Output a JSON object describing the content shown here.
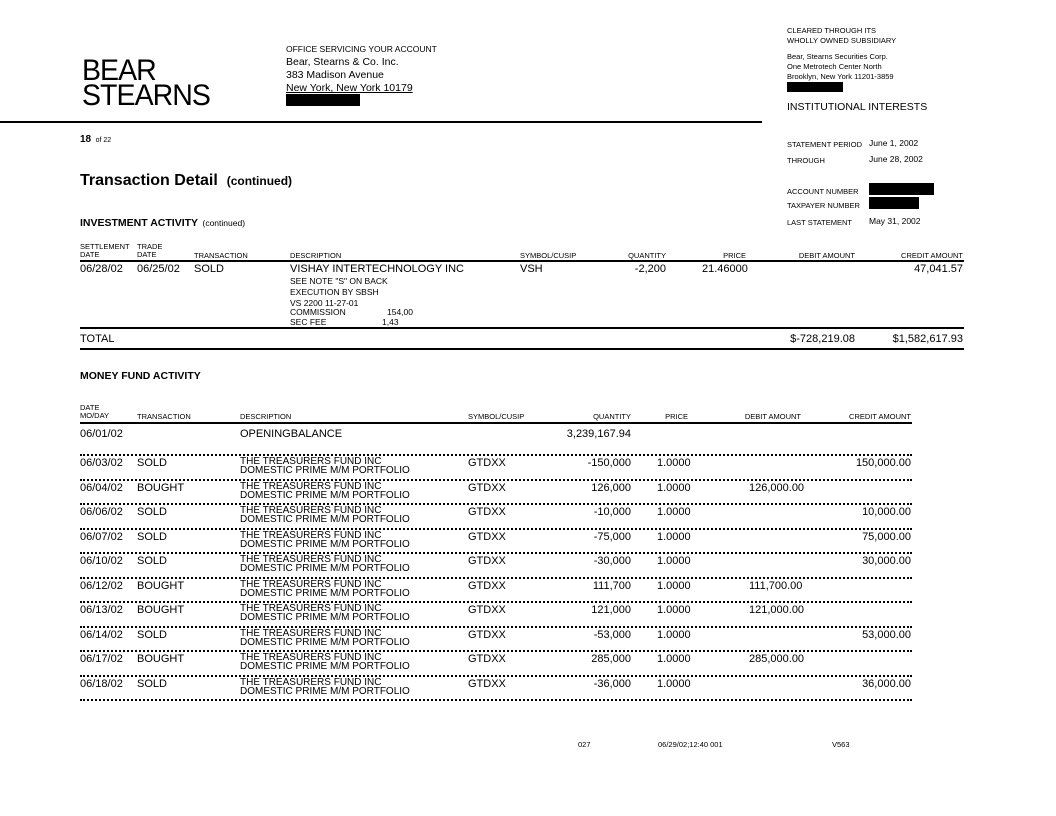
{
  "brand": {
    "logo_line1": "BEAR",
    "logo_line2": "STEARNS"
  },
  "office": {
    "heading": "OFFICE SERVICING YOUR ACCOUNT",
    "line1": "Bear, Stearns & Co. Inc.",
    "line2": "383 Madison Avenue",
    "line3": "New York, New York  10179"
  },
  "clearing": {
    "line1": "CLEARED THROUGH ITS",
    "line2": "WHOLLY OWNED SUBSIDIARY",
    "addr1": "Bear, Stearns Securities Corp.",
    "addr2": "One Metrotech Center North",
    "addr3": "Brooklyn,  New York  11201-3859",
    "division": "INSTITUTIONAL  INTERESTS"
  },
  "page": {
    "number": "18",
    "of": "of 22"
  },
  "statement": {
    "period_label": "STATEMENT  PERIOD",
    "period_start": "June 1, 2002",
    "through_label": "THROUGH",
    "period_end": "June 28, 2002",
    "account_label": "ACCOUNT  NUMBER",
    "taxpayer_label": "TAXPAYER  NUMBER",
    "last_label": "LAST  STATEMENT",
    "last_value": "May 31, 2002"
  },
  "title": {
    "main": "Transaction Detail",
    "sub": "(continued)"
  },
  "investment": {
    "heading": "INVESTMENT ACTIVITY",
    "heading_sub": "(continued)",
    "headers": {
      "settle1": "SETTLEMENT",
      "settle2": "DATE",
      "trade1": "TRADE",
      "trade2": "DATE",
      "transaction": "TRANSACTION",
      "description": "DESCRIPTION",
      "symbol": "SYMBOL/CUSIP",
      "quantity": "QUANTITY",
      "price": "PRICE",
      "debit": "DEBIT AMOUNT",
      "credit": "CREDIT AMOUNT"
    },
    "row": {
      "settlement": "06/28/02",
      "trade": "06/25/02",
      "transaction": "SOLD",
      "description": [
        "VISHAY INTERTECHNOLOGY  INC",
        "SEE NOTE \"S\" ON BACK",
        "EXECUTION BY SBSH",
        "VS 2200 11-27-01"
      ],
      "commission_label": "COMMISSION",
      "commission": "154,00",
      "secfee_label": "SEC FEE",
      "secfee": "1,43",
      "symbol": "VSH",
      "quantity": "-2,200",
      "price": "21.46000",
      "debit": "",
      "credit": "47,041.57"
    },
    "total": {
      "label": "TOTAL",
      "debit": "$-728,219.08",
      "credit": "$1,582,617.93"
    }
  },
  "money_fund": {
    "heading": "MONEY FUND ACTIVITY",
    "headers": {
      "date1": "DATE",
      "date2": "MO/DAY",
      "transaction": "TRANSACTION",
      "description": "DESCRIPTION",
      "symbol": "SYMBOL/CUSIP",
      "quantity": "QUANTITY",
      "price": "PRICE",
      "debit": "DEBIT AMOUNT",
      "credit": "CREDIT AMOUNT"
    },
    "opening": {
      "date": "06/01/02",
      "description": "OPENINGBALANCE",
      "quantity": "3,239,167.94"
    },
    "rows": [
      {
        "date": "06/03/02",
        "transaction": "SOLD",
        "desc1": "THE TREASURERS  FUND INC",
        "desc2": "DOMESTIC  PRIME  M/M PORTFOLIO",
        "symbol": "GTDXX",
        "quantity": "-150,000",
        "price": "1.0000",
        "debit": "",
        "credit": "150,000.00"
      },
      {
        "date": "06/04/02",
        "transaction": "BOUGHT",
        "desc1": "THE TREASURERS  FUND INC",
        "desc2": "DOMESTIC  PRIME  M/M PORTFOLIO",
        "symbol": "GTDXX",
        "quantity": "126,000",
        "price": "1.0000",
        "debit": "126,000.00",
        "credit": ""
      },
      {
        "date": "06/06/02",
        "transaction": "SOLD",
        "desc1": "THE TREASURERS  FUND INC",
        "desc2": "DOMESTIC  PRIME  M/M PORTFOLIO",
        "symbol": "GTDXX",
        "quantity": "-10,000",
        "price": "1.0000",
        "debit": "",
        "credit": "10,000.00"
      },
      {
        "date": "06/07/02",
        "transaction": "SOLD",
        "desc1": "THE TREASURERS  FUND INC",
        "desc2": "DOMESTIC  PRIME  M/M PORTFOLIO",
        "symbol": "GTDXX",
        "quantity": "-75,000",
        "price": "1.0000",
        "debit": "",
        "credit": "75,000.00"
      },
      {
        "date": "06/10/02",
        "transaction": "SOLD",
        "desc1": "THE TREASURERS  FUND INC",
        "desc2": "DOMESTIC  PRIME  M/M PORTFOLIO",
        "symbol": "GTDXX",
        "quantity": "-30,000",
        "price": "1.0000",
        "debit": "",
        "credit": "30,000.00"
      },
      {
        "date": "06/12/02",
        "transaction": "BOUGHT",
        "desc1": "THE TREASURERS  FUND INC",
        "desc2": "DOMESTIC  PRIME  M/M PORTFOLIO",
        "symbol": "GTDXX",
        "quantity": "111,700",
        "price": "1.0000",
        "debit": "111,700.00",
        "credit": ""
      },
      {
        "date": "06/13/02",
        "transaction": "BOUGHT",
        "desc1": "THE TREASURERS  FUND INC",
        "desc2": "DOMESTIC  PRIME  M/M PORTFOLIO",
        "symbol": "GTDXX",
        "quantity": "121,000",
        "price": "1.0000",
        "debit": "121,000.00",
        "credit": ""
      },
      {
        "date": "06/14/02",
        "transaction": "SOLD",
        "desc1": "THE TREASURERS  FUND INC",
        "desc2": "DOMESTIC  PRIME  M/M PORTFOLIO",
        "symbol": "GTDXX",
        "quantity": "-53,000",
        "price": "1.0000",
        "debit": "",
        "credit": "53,000.00"
      },
      {
        "date": "06/17/02",
        "transaction": "BOUGHT",
        "desc1": "THE TREASURERS  FUND INC",
        "desc2": "DOMESTIC  PRIME  M/M PORTFOLIO",
        "symbol": "GTDXX",
        "quantity": "285,000",
        "price": "1.0000",
        "debit": "285,000.00",
        "credit": ""
      },
      {
        "date": "06/18/02",
        "transaction": "SOLD",
        "desc1": "THE TREASURERS  FUND INC",
        "desc2": "DOMESTIC  PRIME  M/M PORTFOLIO",
        "symbol": "GTDXX",
        "quantity": "-36,000",
        "price": "1.0000",
        "debit": "",
        "credit": "36,000.00"
      }
    ]
  },
  "footer": {
    "code1": "027",
    "timestamp": "06/29/02;12:40  001",
    "code2": "V563"
  }
}
